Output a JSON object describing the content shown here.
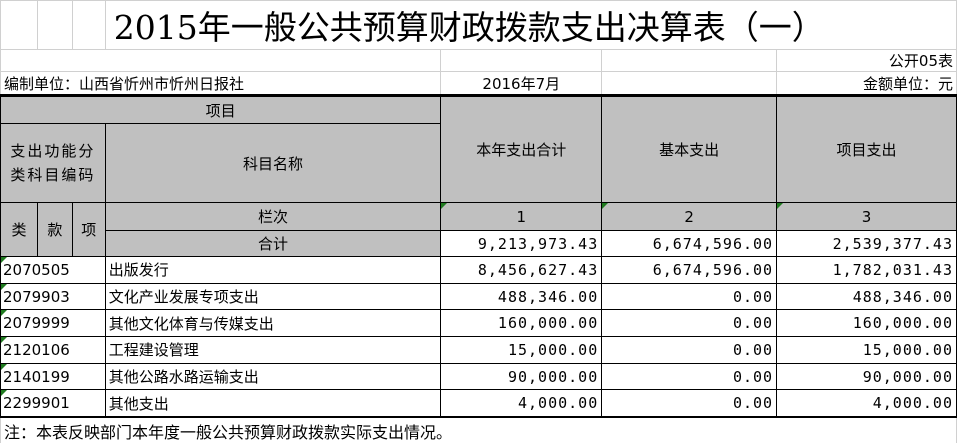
{
  "title": "2015年一般公共预算财政拨款支出决算表（一）",
  "form_no": "公开05表",
  "unit_label": "编制单位：山西省忻州市忻州日报社",
  "date": "2016年7月",
  "currency_label": "金额单位：元",
  "header": {
    "project": "项目",
    "func_code": "支出功能分类科目编码",
    "subject_name": "科目名称",
    "total": "本年支出合计",
    "basic": "基本支出",
    "project_exp": "项目支出",
    "lei": "类",
    "kuan": "款",
    "xiang": "项",
    "column_no": "栏次",
    "col1": "1",
    "col2": "2",
    "col3": "3"
  },
  "sum_row": {
    "label": "合计",
    "total": "9,213,973.43",
    "basic": "6,674,596.00",
    "project": "2,539,377.43"
  },
  "rows": [
    {
      "code": "2070505",
      "name": "出版发行",
      "total": "8,456,627.43",
      "basic": "6,674,596.00",
      "project": "1,782,031.43"
    },
    {
      "code": "2079903",
      "name": "文化产业发展专项支出",
      "total": "488,346.00",
      "basic": "0.00",
      "project": "488,346.00"
    },
    {
      "code": "2079999",
      "name": "其他文化体育与传媒支出",
      "total": "160,000.00",
      "basic": "0.00",
      "project": "160,000.00"
    },
    {
      "code": "2120106",
      "name": "工程建设管理",
      "total": "15,000.00",
      "basic": "0.00",
      "project": "15,000.00"
    },
    {
      "code": "2140199",
      "name": "其他公路水路运输支出",
      "total": "90,000.00",
      "basic": "0.00",
      "project": "90,000.00"
    },
    {
      "code": "2299901",
      "name": "其他支出",
      "total": "4,000.00",
      "basic": "0.00",
      "project": "4,000.00"
    }
  ],
  "note": "注：本表反映部门本年度一般公共预算财政拨款实际支出情况。"
}
